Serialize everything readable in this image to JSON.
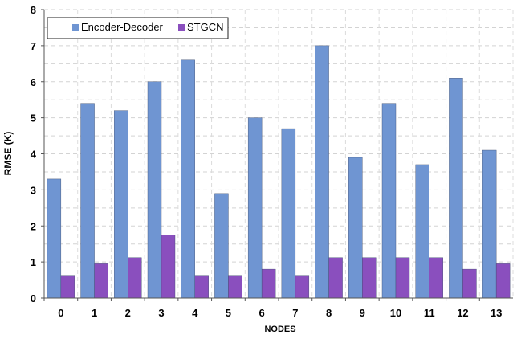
{
  "chart_data": {
    "type": "bar",
    "xlabel": "NODES",
    "ylabel": "RMSE (K)",
    "ylim": [
      0,
      8
    ],
    "yticks": [
      0,
      1,
      2,
      3,
      4,
      5,
      6,
      7,
      8
    ],
    "grid": true,
    "legend_position": "top-left",
    "categories": [
      "0",
      "1",
      "2",
      "3",
      "4",
      "5",
      "6",
      "7",
      "8",
      "9",
      "10",
      "11",
      "12",
      "13"
    ],
    "series": [
      {
        "name": "Encoder-Decoder",
        "color": "#6f95d2",
        "values": [
          3.3,
          5.4,
          5.2,
          6.0,
          6.6,
          2.9,
          5.0,
          4.7,
          7.0,
          3.9,
          5.4,
          3.7,
          6.1,
          4.1
        ]
      },
      {
        "name": "STGCN",
        "color": "#8a4fbe",
        "values": [
          0.63,
          0.95,
          1.12,
          1.75,
          0.63,
          0.63,
          0.8,
          0.63,
          1.12,
          1.12,
          1.12,
          1.12,
          0.8,
          0.95
        ]
      }
    ]
  }
}
